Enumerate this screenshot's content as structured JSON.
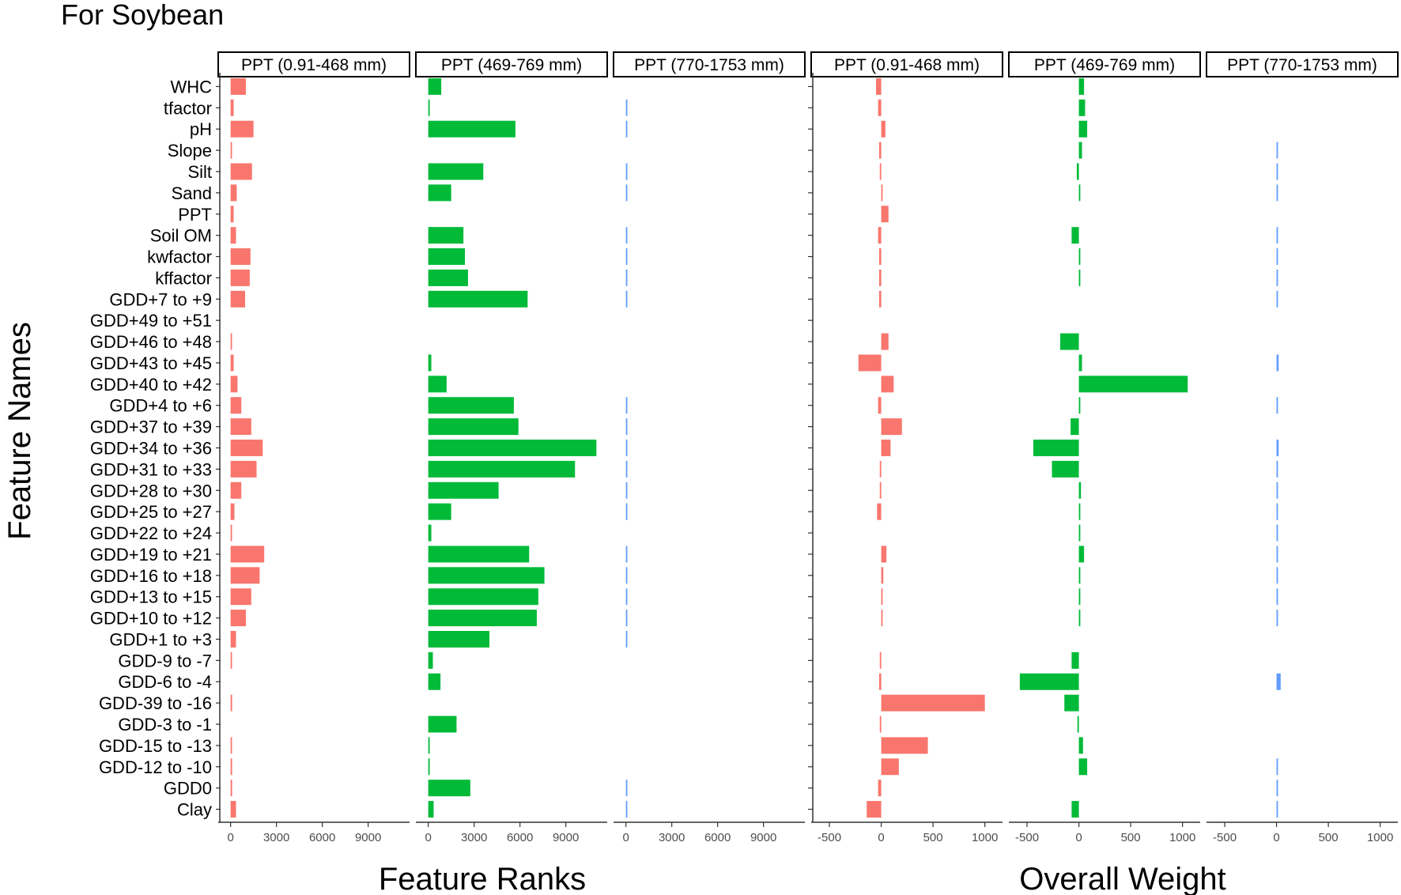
{
  "figure": {
    "title": "For Soybean",
    "y_axis_label": "Feature Names",
    "group_labels": [
      "Feature Ranks",
      "Overall Weight"
    ]
  },
  "chart_data": {
    "type": "bar",
    "orientation": "horizontal",
    "features": [
      "WHC",
      "tfactor",
      "pH",
      "Slope",
      "Silt",
      "Sand",
      "PPT",
      "Soil OM",
      "kwfactor",
      "kffactor",
      "GDD+7 to +9",
      "GDD+49 to +51",
      "GDD+46 to +48",
      "GDD+43 to +45",
      "GDD+40 to +42",
      "GDD+4 to +6",
      "GDD+37 to +39",
      "GDD+34 to +36",
      "GDD+31 to +33",
      "GDD+28 to +30",
      "GDD+25 to +27",
      "GDD+22 to +24",
      "GDD+19 to +21",
      "GDD+16 to +18",
      "GDD+13 to +15",
      "GDD+10 to +12",
      "GDD+1 to +3",
      "GDD-9 to -7",
      "GDD-6 to -4",
      "GDD-39 to -16",
      "GDD-3 to -1",
      "GDD-15 to -13",
      "GDD-12 to -10",
      "GDD0",
      "Clay"
    ],
    "panels": [
      {
        "group": "Feature Ranks",
        "strip": "PPT (0.91-468 mm)",
        "color": "#F8766D",
        "xlim": [
          -500,
          11500
        ],
        "ticks": [
          0,
          3000,
          6000,
          9000
        ],
        "tick_labels": [
          "0",
          "3000",
          "6000",
          "9000"
        ],
        "values": [
          1000,
          200,
          1500,
          50,
          1400,
          400,
          200,
          350,
          1300,
          1250,
          950,
          0,
          50,
          200,
          450,
          700,
          1350,
          2100,
          1700,
          700,
          250,
          50,
          2200,
          1900,
          1350,
          1000,
          350,
          50,
          0,
          100,
          0,
          50,
          100,
          100,
          350
        ]
      },
      {
        "group": "Feature Ranks",
        "strip": "PPT (469-769  mm)",
        "color": "#00BA38",
        "xlim": [
          -500,
          11500
        ],
        "ticks": [
          0,
          3000,
          6000,
          9000
        ],
        "tick_labels": [
          "0",
          "3000",
          "6000",
          "9000"
        ],
        "values": [
          850,
          50,
          5700,
          0,
          3600,
          1500,
          0,
          2300,
          2400,
          2600,
          6500,
          0,
          0,
          200,
          1200,
          5600,
          5900,
          11000,
          9600,
          4600,
          1500,
          200,
          6600,
          7600,
          7200,
          7100,
          4000,
          300,
          800,
          0,
          1850,
          50,
          50,
          2750,
          350
        ]
      },
      {
        "group": "Feature Ranks",
        "strip": "PPT (770-1753   mm)",
        "color": "#619CFF",
        "xlim": [
          -500,
          11500
        ],
        "ticks": [
          0,
          3000,
          6000,
          9000
        ],
        "tick_labels": [
          "0",
          "3000",
          "6000",
          "9000"
        ],
        "values": [
          0,
          60,
          20,
          0,
          60,
          60,
          0,
          20,
          20,
          40,
          60,
          0,
          0,
          0,
          0,
          60,
          20,
          60,
          60,
          60,
          20,
          0,
          60,
          60,
          60,
          60,
          20,
          0,
          0,
          0,
          0,
          0,
          0,
          20,
          60
        ]
      },
      {
        "group": "Overall Weight",
        "strip": "PPT (0.91-468 mm)",
        "color": "#F8766D",
        "xlim": [
          -630,
          1140
        ],
        "ticks": [
          -500,
          0,
          500,
          1000
        ],
        "tick_labels": [
          "-500",
          "0",
          "500",
          "1000"
        ],
        "values": [
          -50,
          -30,
          40,
          -20,
          -10,
          5,
          70,
          -30,
          -20,
          -20,
          -20,
          0,
          70,
          -220,
          120,
          -30,
          200,
          90,
          -10,
          -5,
          -40,
          0,
          50,
          20,
          10,
          5,
          0,
          -10,
          -20,
          1000,
          -10,
          450,
          170,
          -30,
          -140
        ]
      },
      {
        "group": "Overall Weight",
        "strip": "PPT (469-769  mm)",
        "color": "#00BA38",
        "xlim": [
          -630,
          1140
        ],
        "ticks": [
          -500,
          0,
          500,
          1000
        ],
        "tick_labels": [
          "-500",
          "0",
          "500",
          "1000"
        ],
        "values": [
          50,
          60,
          80,
          30,
          -20,
          10,
          0,
          -70,
          10,
          10,
          0,
          0,
          -180,
          30,
          1050,
          10,
          -80,
          -440,
          -260,
          20,
          10,
          10,
          50,
          10,
          10,
          10,
          0,
          -70,
          -570,
          -140,
          -10,
          40,
          80,
          0,
          -70
        ]
      },
      {
        "group": "Overall Weight",
        "strip": "PPT (770-1753   mm)",
        "color": "#619CFF",
        "xlim": [
          -630,
          1140
        ],
        "ticks": [
          -500,
          0,
          500,
          1000
        ],
        "tick_labels": [
          "-500",
          "0",
          "500",
          "1000"
        ],
        "values": [
          0,
          0,
          0,
          10,
          10,
          10,
          0,
          10,
          10,
          10,
          10,
          0,
          0,
          20,
          0,
          10,
          0,
          20,
          10,
          10,
          10,
          10,
          10,
          10,
          10,
          10,
          0,
          0,
          40,
          0,
          0,
          0,
          10,
          10,
          10
        ]
      }
    ]
  }
}
